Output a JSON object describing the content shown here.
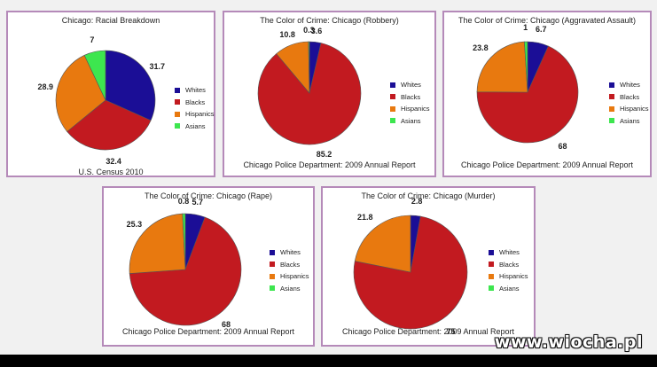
{
  "colors": {
    "Whites": "#1b0e96",
    "Blacks": "#c21a20",
    "Hispanics": "#e8790f",
    "Asians": "#3de64f"
  },
  "legend": [
    "Whites",
    "Blacks",
    "Hispanics",
    "Asians"
  ],
  "chart_data": [
    {
      "type": "pie",
      "title": "Chicago: Racial Breakdown",
      "footer": "U.S. Census 2010",
      "categories": [
        "Whites",
        "Blacks",
        "Hispanics",
        "Asians"
      ],
      "values": [
        31.7,
        32.4,
        28.9,
        7
      ]
    },
    {
      "type": "pie",
      "title": "The Color of Crime: Chicago (Robbery)",
      "footer": "Chicago Police Department: 2009 Annual Report",
      "categories": [
        "Whites",
        "Blacks",
        "Hispanics",
        "Asians"
      ],
      "values": [
        3.6,
        85.2,
        10.8,
        0.3
      ]
    },
    {
      "type": "pie",
      "title": "The Color of Crime: Chicago (Aggravated Assault)",
      "footer": "Chicago Police Department: 2009 Annual Report",
      "categories": [
        "Whites",
        "Blacks",
        "Hispanics",
        "Asians"
      ],
      "values": [
        6.7,
        68,
        23.8,
        1
      ]
    },
    {
      "type": "pie",
      "title": "The Color of Crime: Chicago (Rape)",
      "footer": "Chicago Police Department: 2009 Annual Report",
      "categories": [
        "Whites",
        "Blacks",
        "Hispanics",
        "Asians"
      ],
      "values": [
        5.7,
        68,
        25.3,
        0.8
      ]
    },
    {
      "type": "pie",
      "title": "The Color of Crime: Chicago (Murder)",
      "footer": "Chicago Police Department: 2009 Annual Report",
      "categories": [
        "Whites",
        "Blacks",
        "Hispanics",
        "Asians"
      ],
      "values": [
        2.8,
        75,
        21.8,
        0
      ]
    }
  ],
  "watermark": "www.wiocha.pl"
}
